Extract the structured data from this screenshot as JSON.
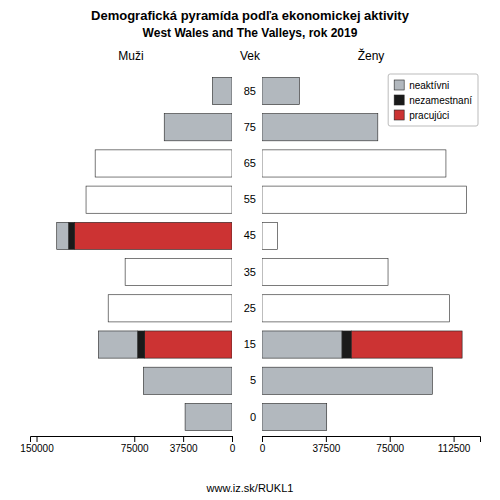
{
  "title": "Demografická pyramída podľa ekonomickej aktivity",
  "subtitle": "West Wales and The Valleys, rok 2019",
  "annotations": [
    "www.iz.sk/RUKL1"
  ],
  "chart_data": [
    {
      "type": "bar",
      "orientation": "horizontal",
      "stacked": true,
      "grid": false,
      "title": "Muži",
      "tick_labels": "x",
      "categories": [
        "0",
        "5",
        "15",
        "25",
        "35",
        "45",
        "55",
        "65",
        "75",
        "85"
      ],
      "xlim": [
        155000,
        0
      ],
      "xticks": [
        150000,
        75000,
        37500,
        0
      ],
      "series": [
        {
          "color": "#cc3333",
          "values": [
            0,
            0,
            67000,
            0,
            0,
            121000,
            0,
            0,
            0,
            0
          ]
        },
        {
          "color": "#1a1a1a",
          "values": [
            0,
            0,
            5500,
            0,
            0,
            4500,
            0,
            0,
            0,
            0
          ]
        },
        {
          "color": "#b2b8be",
          "colors": [
            "#b2b8be",
            "#b2b8be",
            "#b2b8be",
            "#ffffff",
            "#ffffff",
            "#b2b8be",
            "#ffffff",
            "#ffffff",
            "#b2b8be",
            "#b2b8be"
          ],
          "values": [
            36000,
            68000,
            30000,
            95000,
            82000,
            9000,
            112000,
            105000,
            52000,
            15000
          ]
        }
      ]
    },
    {
      "type": "bar",
      "orientation": "horizontal",
      "stacked": true,
      "grid": false,
      "title": "Ženy",
      "ylabel": "Vek",
      "legend": "upper right",
      "categories": [
        "0",
        "5",
        "15",
        "25",
        "35",
        "45",
        "55",
        "65",
        "75",
        "85"
      ],
      "xlim": [
        0,
        128000
      ],
      "xticks": [
        0,
        37500,
        75000,
        112500
      ],
      "series": [
        {
          "name": "neaktívni",
          "color": "#b2b8be",
          "colors": [
            "#b2b8be",
            "#b2b8be",
            "#b2b8be",
            "#ffffff",
            "#ffffff",
            "#ffffff",
            "#ffffff",
            "#ffffff",
            "#b2b8be",
            "#b2b8be"
          ],
          "values": [
            38000,
            100000,
            47000,
            110000,
            74000,
            9000,
            120000,
            108000,
            68000,
            22000
          ]
        },
        {
          "name": "nezamestnaní",
          "color": "#1a1a1a",
          "values": [
            0,
            0,
            5500,
            0,
            0,
            0,
            0,
            0,
            0,
            0
          ]
        },
        {
          "name": "pracujúci",
          "color": "#cc3333",
          "values": [
            0,
            0,
            65000,
            0,
            0,
            0,
            0,
            0,
            0,
            0
          ]
        }
      ]
    }
  ]
}
